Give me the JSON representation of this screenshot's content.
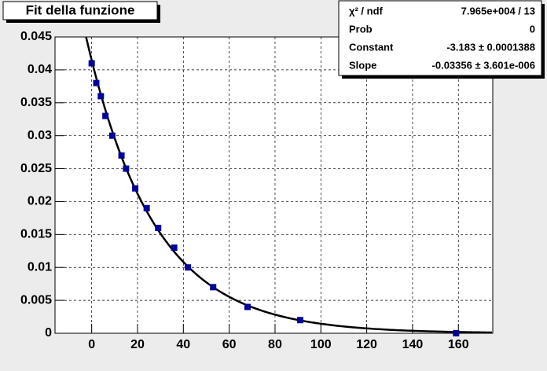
{
  "chart_data": {
    "type": "scatter",
    "title": "Fit della funzione",
    "x": [
      0,
      2,
      4,
      6,
      9,
      13,
      15,
      19,
      24,
      29,
      36,
      42,
      53,
      68,
      91,
      159
    ],
    "y": [
      0.041,
      0.038,
      0.036,
      0.033,
      0.03,
      0.027,
      0.025,
      0.022,
      0.019,
      0.016,
      0.013,
      0.01,
      0.007,
      0.004,
      0.002,
      0.0
    ],
    "color": "#000099",
    "xlim": [
      -16,
      175
    ],
    "xticks": [
      0,
      20,
      40,
      60,
      80,
      100,
      120,
      140,
      160
    ],
    "ylim": [
      0,
      0.045
    ],
    "yticks": [
      0,
      0.005,
      0.01,
      0.015,
      0.02,
      0.025,
      0.03,
      0.035,
      0.04,
      0.045
    ],
    "grid": true,
    "stats": [
      {
        "label": "χ² / ndf",
        "value": "7.965e+004 / 13"
      },
      {
        "label": "Prob",
        "value": "0"
      },
      {
        "label": "Constant",
        "value": "-3.183 ± 0.0001388"
      },
      {
        "label": "Slope",
        "value": "-0.03356 ± 3.601e-006"
      }
    ]
  }
}
